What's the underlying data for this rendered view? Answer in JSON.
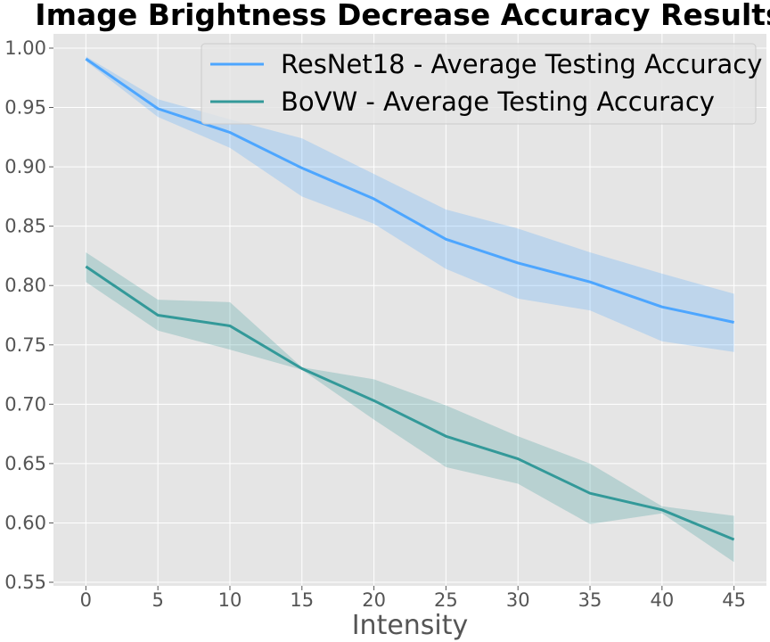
{
  "chart_data": {
    "type": "line",
    "title": "Image Brightness Decrease Accuracy Results",
    "xlabel": "Intensity",
    "ylabel": "",
    "x": [
      0,
      5,
      10,
      15,
      20,
      25,
      30,
      35,
      40,
      45
    ],
    "xticks": [
      "0",
      "5",
      "10",
      "15",
      "20",
      "25",
      "30",
      "35",
      "40",
      "45"
    ],
    "yticks": [
      "0.55",
      "0.60",
      "0.65",
      "0.70",
      "0.75",
      "0.80",
      "0.85",
      "0.90",
      "0.95",
      "1.00"
    ],
    "ylim": [
      0.547,
      1.012
    ],
    "xlim": [
      -2.25,
      47.25
    ],
    "grid": true,
    "legend_position": "upper right",
    "series": [
      {
        "name": "ResNet18 - Average Testing Accuracy",
        "color": "#4da6ff",
        "values": [
          0.991,
          0.949,
          0.929,
          0.899,
          0.873,
          0.839,
          0.819,
          0.803,
          0.782,
          0.769
        ],
        "lower": [
          0.989,
          0.942,
          0.916,
          0.875,
          0.852,
          0.814,
          0.789,
          0.779,
          0.753,
          0.744
        ],
        "upper": [
          0.993,
          0.957,
          0.94,
          0.924,
          0.894,
          0.864,
          0.848,
          0.828,
          0.81,
          0.793
        ]
      },
      {
        "name": "BoVW - Average Testing Accuracy",
        "color": "#339999",
        "values": [
          0.816,
          0.775,
          0.766,
          0.73,
          0.703,
          0.673,
          0.654,
          0.625,
          0.611,
          0.586
        ],
        "lower": [
          0.803,
          0.762,
          0.746,
          0.729,
          0.687,
          0.647,
          0.633,
          0.599,
          0.608,
          0.567
        ],
        "upper": [
          0.828,
          0.788,
          0.786,
          0.731,
          0.721,
          0.699,
          0.673,
          0.65,
          0.614,
          0.606
        ]
      }
    ]
  }
}
